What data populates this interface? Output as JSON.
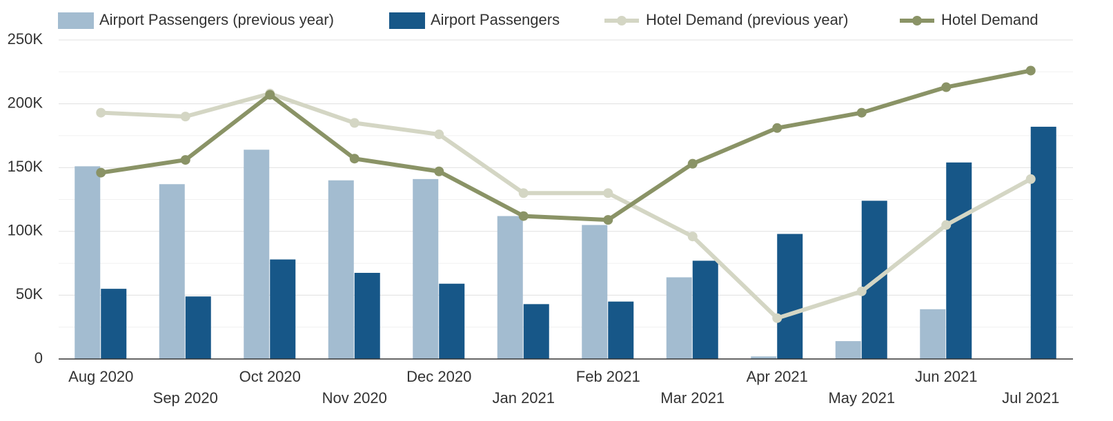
{
  "chart_data": {
    "type": "bar-line",
    "categories": [
      "Aug 2020",
      "Sep 2020",
      "Oct 2020",
      "Nov 2020",
      "Dec 2020",
      "Jan 2021",
      "Feb 2021",
      "Mar 2021",
      "Apr 2021",
      "May 2021",
      "Jun 2021",
      "Jul 2021"
    ],
    "series": [
      {
        "name": "Airport Passengers (previous year)",
        "type": "bar",
        "color": "#a3bcd0",
        "values": [
          151000,
          137000,
          164000,
          140000,
          141000,
          112000,
          105000,
          64000,
          2000,
          14000,
          39000,
          0
        ]
      },
      {
        "name": "Airport Passengers",
        "type": "bar",
        "color": "#175788",
        "values": [
          55000,
          49000,
          78000,
          67500,
          59000,
          43000,
          45000,
          77000,
          98000,
          124000,
          154000,
          182000
        ]
      },
      {
        "name": "Hotel Demand (previous year)",
        "type": "line",
        "color": "#d4d6c4",
        "values": [
          193000,
          190000,
          208000,
          185000,
          176000,
          130000,
          130000,
          96000,
          32000,
          53000,
          105000,
          141000
        ]
      },
      {
        "name": "Hotel Demand",
        "type": "line",
        "color": "#8a9366",
        "values": [
          146000,
          156000,
          207000,
          157000,
          147000,
          112000,
          109000,
          153000,
          181000,
          193000,
          213000,
          226000
        ]
      }
    ],
    "ylim": [
      0,
      250000
    ],
    "yticks": [
      0,
      {
        "value": 50000,
        "label": "50K"
      },
      {
        "value": 100000,
        "label": "100K"
      },
      {
        "value": 150000,
        "label": "150K"
      },
      {
        "value": 200000,
        "label": "200K"
      },
      {
        "value": 250000,
        "label": "250K"
      }
    ],
    "minor_grid": [
      25000,
      75000,
      125000,
      175000,
      225000
    ],
    "grid": true,
    "legend": "top"
  }
}
